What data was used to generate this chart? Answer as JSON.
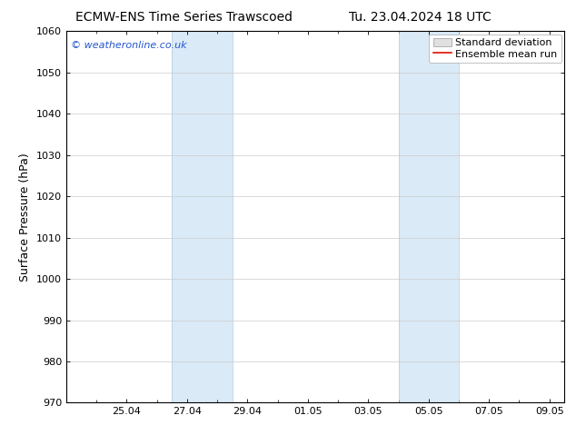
{
  "title_left": "ECMW-ENS Time Series Trawscoed",
  "title_right": "Tu. 23.04.2024 18 UTC",
  "ylabel": "Surface Pressure (hPa)",
  "ylim": [
    970,
    1060
  ],
  "yticks": [
    970,
    980,
    990,
    1000,
    1010,
    1020,
    1030,
    1040,
    1050,
    1060
  ],
  "xtick_labels": [
    "25.04",
    "27.04",
    "29.04",
    "01.05",
    "03.05",
    "05.05",
    "07.05",
    "09.05"
  ],
  "xtick_positions": [
    2,
    4,
    6,
    8,
    10,
    12,
    14,
    16
  ],
  "xlim": [
    0,
    16.5
  ],
  "shaded_bands": [
    {
      "x_start": 3.5,
      "x_end": 5.5
    },
    {
      "x_start": 11.0,
      "x_end": 13.0
    }
  ],
  "shaded_color": "#daeaf7",
  "shaded_edge_color": "#b0cce0",
  "background_color": "#ffffff",
  "plot_bg_color": "#ffffff",
  "watermark_text": "© weatheronline.co.uk",
  "watermark_color": "#2255cc",
  "legend_std_label": "Standard deviation",
  "legend_ens_label": "Ensemble mean run",
  "legend_std_facecolor": "#e0e0e0",
  "legend_std_edgecolor": "#999999",
  "legend_ens_color": "#dd1100",
  "title_fontsize": 10,
  "axis_label_fontsize": 9,
  "tick_fontsize": 8,
  "watermark_fontsize": 8,
  "legend_fontsize": 8,
  "grid_color": "#cccccc",
  "tick_color": "#000000",
  "spine_color": "#000000"
}
